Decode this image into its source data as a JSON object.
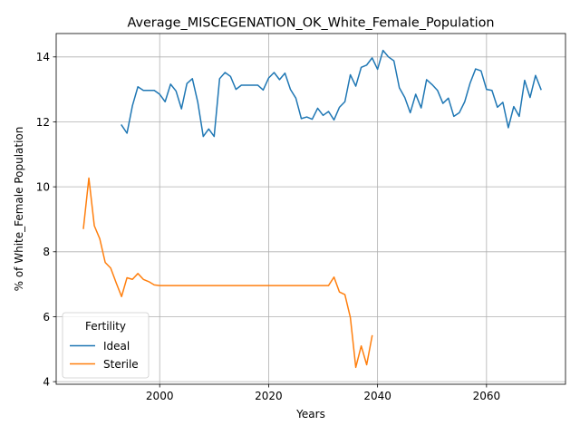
{
  "chart_data": {
    "type": "line",
    "title": "Average_MISCEGENATION_OK_White_Female_Population",
    "xlabel": "Years",
    "ylabel": "% of White_Female Population",
    "xlim": [
      1981,
      2074.5
    ],
    "ylim": [
      3.92,
      14.72
    ],
    "xticks": [
      2000,
      2020,
      2040,
      2060
    ],
    "yticks": [
      4,
      6,
      8,
      10,
      12,
      14
    ],
    "grid": true,
    "legend": {
      "title": "Fertility",
      "placement": "lower-left"
    },
    "colors": {
      "Ideal": "#1f77b4",
      "Sterile": "#ff7f0e"
    },
    "series": [
      {
        "name": "Ideal",
        "x": [
          1993,
          1994,
          1995,
          1996,
          1997,
          1998,
          1999,
          2000,
          2001,
          2002,
          2003,
          2004,
          2005,
          2006,
          2007,
          2008,
          2009,
          2010,
          2011,
          2012,
          2013,
          2014,
          2015,
          2016,
          2017,
          2018,
          2019,
          2020,
          2021,
          2022,
          2023,
          2024,
          2025,
          2026,
          2027,
          2028,
          2029,
          2030,
          2031,
          2032,
          2033,
          2034,
          2035,
          2036,
          2037,
          2038,
          2039,
          2040,
          2041,
          2042,
          2043,
          2044,
          2045,
          2046,
          2047,
          2048,
          2049,
          2050,
          2051,
          2052,
          2053,
          2054,
          2055,
          2056,
          2057,
          2058,
          2059,
          2060,
          2061,
          2062,
          2063,
          2064,
          2065,
          2066,
          2067,
          2068,
          2069,
          2070
        ],
        "values": [
          11.9,
          11.65,
          12.5,
          13.08,
          12.97,
          12.97,
          12.97,
          12.85,
          12.62,
          13.16,
          12.95,
          12.4,
          13.18,
          13.33,
          12.6,
          11.55,
          11.78,
          11.55,
          13.33,
          13.52,
          13.4,
          13.0,
          13.13,
          13.13,
          13.13,
          13.13,
          12.98,
          13.35,
          13.52,
          13.3,
          13.5,
          13.0,
          12.73,
          12.1,
          12.15,
          12.08,
          12.42,
          12.2,
          12.32,
          12.06,
          12.45,
          12.62,
          13.45,
          13.1,
          13.68,
          13.75,
          13.97,
          13.62,
          14.2,
          14.0,
          13.88,
          13.05,
          12.75,
          12.28,
          12.85,
          12.43,
          13.3,
          13.15,
          12.97,
          12.57,
          12.73,
          12.17,
          12.28,
          12.62,
          13.2,
          13.63,
          13.57,
          13.0,
          12.97,
          12.45,
          12.6,
          11.82,
          12.47,
          12.17,
          13.28,
          12.75,
          13.43,
          13.0
        ]
      },
      {
        "name": "Sterile",
        "x": [
          1986,
          1987,
          1988,
          1989,
          1990,
          1991,
          1992,
          1993,
          1994,
          1995,
          1996,
          1997,
          1998,
          1999,
          2000,
          2001,
          2002,
          2003,
          2004,
          2005,
          2006,
          2007,
          2008,
          2009,
          2010,
          2011,
          2012,
          2013,
          2014,
          2015,
          2016,
          2017,
          2018,
          2019,
          2020,
          2021,
          2022,
          2023,
          2024,
          2025,
          2026,
          2027,
          2028,
          2029,
          2030,
          2031,
          2032,
          2033,
          2034,
          2035,
          2036,
          2037,
          2038,
          2039
        ],
        "values": [
          8.72,
          10.27,
          8.8,
          8.4,
          7.67,
          7.5,
          7.05,
          6.62,
          7.2,
          7.15,
          7.33,
          7.15,
          7.08,
          6.98,
          6.96,
          6.96,
          6.96,
          6.96,
          6.96,
          6.96,
          6.96,
          6.96,
          6.96,
          6.96,
          6.96,
          6.96,
          6.96,
          6.96,
          6.96,
          6.96,
          6.96,
          6.96,
          6.96,
          6.96,
          6.96,
          6.96,
          6.96,
          6.96,
          6.96,
          6.96,
          6.96,
          6.96,
          6.96,
          6.96,
          6.96,
          6.96,
          7.22,
          6.76,
          6.68,
          5.98,
          4.44,
          5.1,
          4.52,
          5.41
        ]
      }
    ]
  }
}
